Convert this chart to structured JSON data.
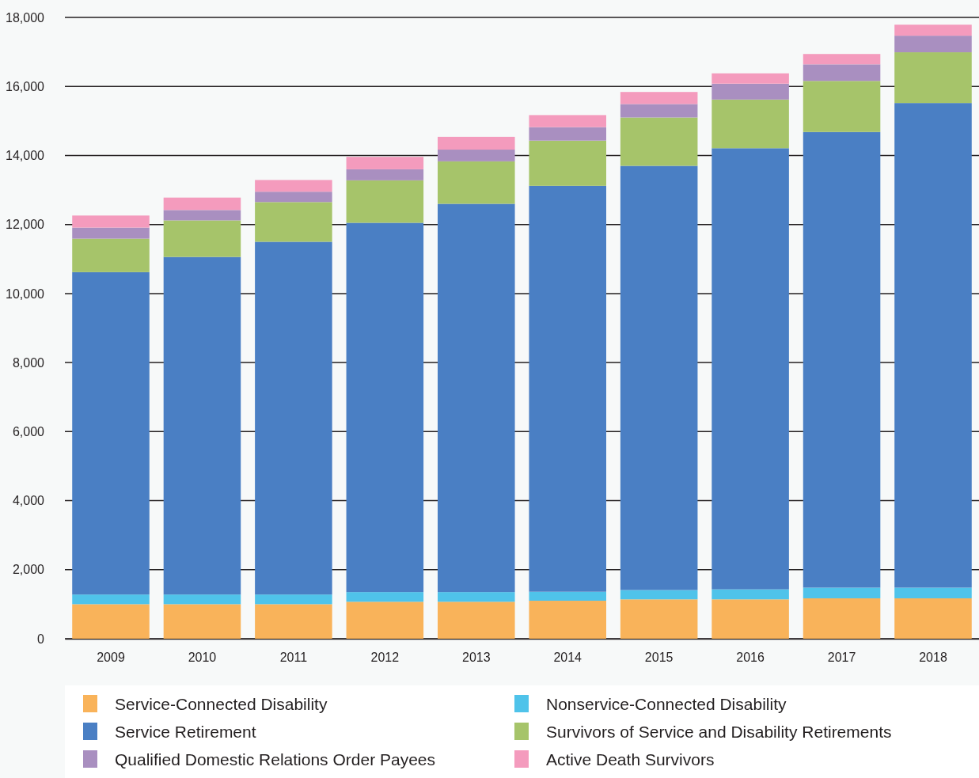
{
  "chart_data": {
    "type": "bar",
    "stacked": true,
    "categories": [
      "2009",
      "2010",
      "2011",
      "2012",
      "2013",
      "2014",
      "2015",
      "2016",
      "2017",
      "2018"
    ],
    "series": [
      {
        "name": "Service-Connected Disability",
        "color": "#f9b35a",
        "values": [
          1000,
          1000,
          1000,
          1070,
          1070,
          1100,
          1140,
          1140,
          1170,
          1170
        ]
      },
      {
        "name": "Nonservice-Connected Disability",
        "color": "#4fc3ea",
        "values": [
          280,
          280,
          280,
          280,
          280,
          260,
          270,
          290,
          310,
          310
        ]
      },
      {
        "name": "Service Retirement",
        "color": "#4a7fc4",
        "values": [
          9340,
          9780,
          10220,
          10700,
          11250,
          11760,
          12290,
          12780,
          13200,
          14040
        ]
      },
      {
        "name": "Survivors of Service and Disability Retirements",
        "color": "#a6c46a",
        "values": [
          970,
          1060,
          1150,
          1230,
          1230,
          1310,
          1400,
          1410,
          1480,
          1470
        ]
      },
      {
        "name": "Qualified Domestic Relations Order Payees",
        "color": "#a98fc0",
        "values": [
          320,
          300,
          300,
          320,
          340,
          390,
          390,
          460,
          480,
          480
        ]
      },
      {
        "name": "Active Death Survivors",
        "color": "#f49bbd",
        "values": [
          350,
          360,
          340,
          360,
          370,
          350,
          350,
          300,
          300,
          320
        ]
      }
    ],
    "ylim": [
      0,
      18000
    ],
    "yticks": [
      {
        "value": 0,
        "label": "0"
      },
      {
        "value": 2000,
        "label": "2,000"
      },
      {
        "value": 4000,
        "label": "4,000"
      },
      {
        "value": 6000,
        "label": "6,000"
      },
      {
        "value": 8000,
        "label": "8,000"
      },
      {
        "value": 10000,
        "label": "10,000"
      },
      {
        "value": 12000,
        "label": "12,000"
      },
      {
        "value": 14000,
        "label": "14,000"
      },
      {
        "value": 16000,
        "label": "16,000"
      },
      {
        "value": 18000,
        "label": "18,000"
      }
    ],
    "grid": "y",
    "legend": "bottom"
  }
}
